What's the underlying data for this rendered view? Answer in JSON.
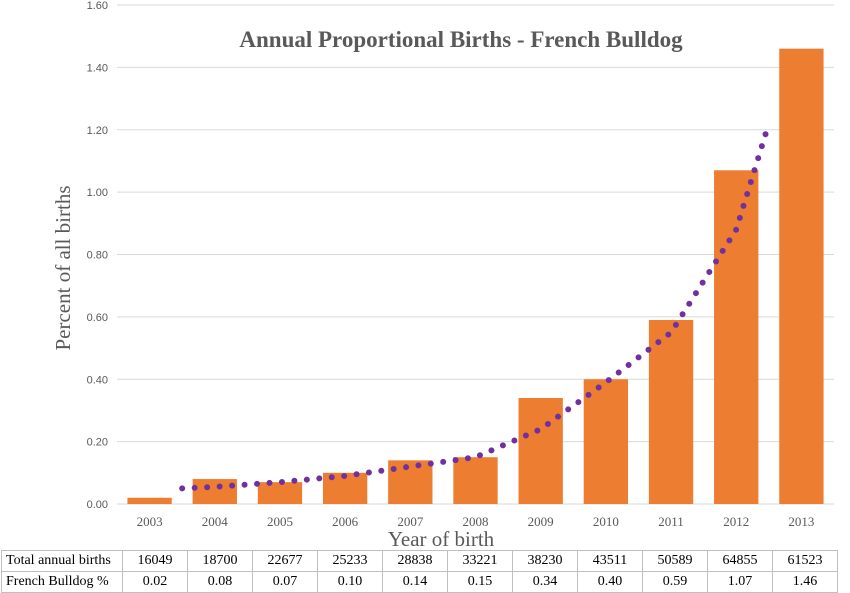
{
  "chart_data": {
    "type": "bar",
    "title": "Annual Proportional Births - French Bulldog",
    "xlabel": "Year of birth",
    "ylabel": "Percent of all births",
    "ylim": [
      0,
      1.6
    ],
    "yticks": [
      "0.00",
      "0.20",
      "0.40",
      "0.60",
      "0.80",
      "1.00",
      "1.20",
      "1.40",
      "1.60"
    ],
    "categories": [
      "2003",
      "2004",
      "2005",
      "2006",
      "2007",
      "2008",
      "2009",
      "2010",
      "2011",
      "2012",
      "2013"
    ],
    "values": [
      0.02,
      0.08,
      0.07,
      0.1,
      0.14,
      0.15,
      0.34,
      0.4,
      0.59,
      1.07,
      1.46
    ],
    "trendline": {
      "style": "dotted",
      "x": [
        "2003.5",
        "2004",
        "2005",
        "2006",
        "2007",
        "2008",
        "2009",
        "2010",
        "2011",
        "2012",
        "2012.5"
      ],
      "y": [
        0.05,
        0.055,
        0.07,
        0.09,
        0.12,
        0.15,
        0.24,
        0.39,
        0.55,
        0.88,
        1.22
      ]
    },
    "grid": true,
    "colors": {
      "bar": "#ED7D31",
      "trend": "#7030A0",
      "grid": "#d9d9d9",
      "text": "#595959"
    }
  },
  "table": {
    "rows": [
      {
        "label": "Total annual births",
        "values": [
          "16049",
          "18700",
          "22677",
          "25233",
          "28838",
          "33221",
          "38230",
          "43511",
          "50589",
          "64855",
          "61523"
        ]
      },
      {
        "label": "French Bulldog %",
        "values": [
          "0.02",
          "0.08",
          "0.07",
          "0.10",
          "0.14",
          "0.15",
          "0.34",
          "0.40",
          "0.59",
          "1.07",
          "1.46"
        ]
      }
    ]
  }
}
